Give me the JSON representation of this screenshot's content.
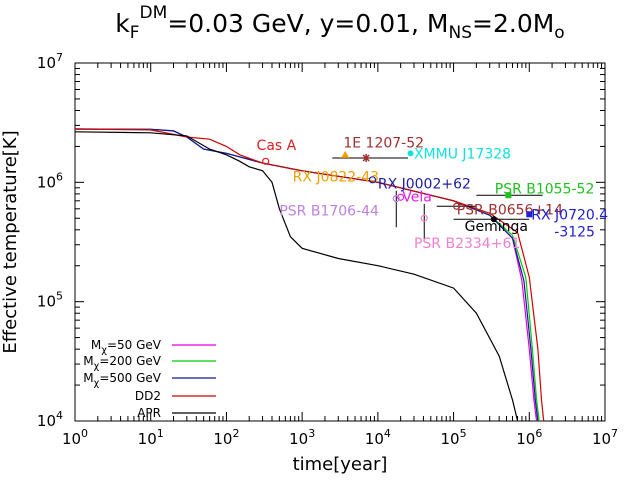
{
  "chart_data": {
    "type": "line",
    "title": {
      "k": "k",
      "sub_F": "F",
      "sup_DM": "DM",
      "rest1": "=0.03 GeV, y=0.01, M",
      "sub_NS": "NS",
      "rest2": "=2.0M",
      "sub_o": "o"
    },
    "xlabel": "time[year]",
    "ylabel": "Effective temperature[K]",
    "x_scale": "log",
    "y_scale": "log",
    "xlim": [
      1,
      10000000
    ],
    "ylim": [
      10000,
      10000000
    ],
    "x_ticks": [
      {
        "base": "10",
        "exp": "0"
      },
      {
        "base": "10",
        "exp": "1"
      },
      {
        "base": "10",
        "exp": "2"
      },
      {
        "base": "10",
        "exp": "3"
      },
      {
        "base": "10",
        "exp": "4"
      },
      {
        "base": "10",
        "exp": "5"
      },
      {
        "base": "10",
        "exp": "6"
      },
      {
        "base": "10",
        "exp": "7"
      }
    ],
    "y_ticks": [
      {
        "base": "10",
        "exp": "4"
      },
      {
        "base": "10",
        "exp": "5"
      },
      {
        "base": "10",
        "exp": "6"
      },
      {
        "base": "10",
        "exp": "7"
      }
    ],
    "legend_position": "bottom-left",
    "series": [
      {
        "name": "M_chi=50 GeV",
        "legend_pre": "M",
        "legend_sub": "χ",
        "legend_post": "=50 GeV",
        "color": "#e000e0",
        "points": [
          [
            1,
            2800000.0
          ],
          [
            10,
            2780000.0
          ],
          [
            20,
            2700000.0
          ],
          [
            30,
            2400000.0
          ],
          [
            50,
            1900000.0
          ],
          [
            100,
            1750000.0
          ],
          [
            300,
            1450000.0
          ],
          [
            1000,
            1250000.0
          ],
          [
            10000,
            1000000.0
          ],
          [
            100000,
            700000.0
          ],
          [
            300000,
            530000.0
          ],
          [
            600000,
            340000.0
          ],
          [
            800000,
            150000.0
          ],
          [
            1000000,
            40000.0
          ],
          [
            1150000,
            15000.0
          ],
          [
            1250000,
            10000.0
          ]
        ]
      },
      {
        "name": "M_chi=200 GeV",
        "legend_pre": "M",
        "legend_sub": "χ",
        "legend_post": "=200 GeV",
        "color": "#00cc00",
        "points": [
          [
            1,
            2800000.0
          ],
          [
            10,
            2780000.0
          ],
          [
            20,
            2700000.0
          ],
          [
            30,
            2400000.0
          ],
          [
            50,
            1900000.0
          ],
          [
            100,
            1750000.0
          ],
          [
            300,
            1450000.0
          ],
          [
            1000,
            1250000.0
          ],
          [
            10000,
            1000000.0
          ],
          [
            100000,
            700000.0
          ],
          [
            300000,
            530000.0
          ],
          [
            600000,
            360000.0
          ],
          [
            900000,
            160000.0
          ],
          [
            1100000,
            40000.0
          ],
          [
            1250000,
            15000.0
          ],
          [
            1350000,
            10000.0
          ]
        ]
      },
      {
        "name": "M_chi=500 GeV",
        "legend_pre": "M",
        "legend_sub": "χ",
        "legend_post": "=500 GeV",
        "color": "#1515a0",
        "points": [
          [
            1,
            2800000.0
          ],
          [
            10,
            2780000.0
          ],
          [
            20,
            2700000.0
          ],
          [
            30,
            2400000.0
          ],
          [
            50,
            1900000.0
          ],
          [
            100,
            1750000.0
          ],
          [
            300,
            1450000.0
          ],
          [
            1000,
            1250000.0
          ],
          [
            10000,
            1000000.0
          ],
          [
            100000,
            700000.0
          ],
          [
            300000,
            530000.0
          ],
          [
            600000,
            340000.0
          ],
          [
            850000,
            150000.0
          ],
          [
            1050000,
            40000.0
          ],
          [
            1200000,
            15000.0
          ],
          [
            1300000,
            10000.0
          ]
        ]
      },
      {
        "name": "DD2",
        "legend_pre": "DD2",
        "legend_sub": "",
        "legend_post": "",
        "color": "#d00000",
        "points": [
          [
            1,
            2800000.0
          ],
          [
            10,
            2750000.0
          ],
          [
            30,
            2400000.0
          ],
          [
            60,
            2300000.0
          ],
          [
            100,
            2000000.0
          ],
          [
            150,
            1700000.0
          ],
          [
            300,
            1450000.0
          ],
          [
            1000,
            1250000.0
          ],
          [
            10000,
            1000000.0
          ],
          [
            100000,
            700000.0
          ],
          [
            300000,
            550000.0
          ],
          [
            700000,
            380000.0
          ],
          [
            1000000,
            160000.0
          ],
          [
            1300000,
            40000.0
          ],
          [
            1450000,
            15000.0
          ],
          [
            1550000,
            10000.0
          ]
        ]
      },
      {
        "name": "APR",
        "legend_pre": "APR",
        "legend_sub": "",
        "legend_post": "",
        "color": "#000000",
        "points": [
          [
            1,
            2650000.0
          ],
          [
            10,
            2600000.0
          ],
          [
            30,
            2450000.0
          ],
          [
            60,
            1900000.0
          ],
          [
            100,
            1700000.0
          ],
          [
            150,
            1500000.0
          ],
          [
            200,
            1350000.0
          ],
          [
            300,
            1250000.0
          ],
          [
            400,
            1000000.0
          ],
          [
            500,
            600000.0
          ],
          [
            700,
            350000.0
          ],
          [
            1000,
            280000.0
          ],
          [
            3000,
            230000.0
          ],
          [
            10000,
            200000.0
          ],
          [
            30000,
            170000.0
          ],
          [
            100000,
            130000.0
          ],
          [
            200000,
            80000.0
          ],
          [
            400000,
            35000.0
          ],
          [
            600000,
            15000.0
          ],
          [
            700000,
            10000.0
          ]
        ]
      }
    ],
    "observations": [
      {
        "name": "Cas A",
        "color": "#e02020",
        "marker": "circle-open",
        "t": 330,
        "T": 1500000.0,
        "t_err": [],
        "T_err": [],
        "label_t": 250,
        "label_T": 2050000.0
      },
      {
        "name": "1E 1207-52",
        "color": "#a03030",
        "marker": "star",
        "t": 7000,
        "T": 1600000.0,
        "t_err": [
          2500,
          25000
        ],
        "T_err": [],
        "label_t": 3500,
        "label_T": 2150000.0
      },
      {
        "name": "RX J0822-43",
        "color": "#f0a000",
        "marker": "triangle",
        "t": 3700,
        "T": 1700000.0,
        "t_err": [],
        "T_err": [],
        "label_t": 750,
        "label_T": 1120000.0
      },
      {
        "name": "XMMU J17328",
        "color": "#10e0e0",
        "marker": "circle",
        "t": 27000,
        "T": 1750000.0,
        "t_err": [],
        "T_err": [],
        "label_t": 30000,
        "label_T": 1750000.0
      },
      {
        "name": "RX J0002+62",
        "color": "#2020a0",
        "marker": "circle-open",
        "t": 8500,
        "T": 1050000.0,
        "t_err": [],
        "T_err": [],
        "label_t": 10000,
        "label_T": 980000.0
      },
      {
        "name": "Vela",
        "color": "#e020e0",
        "marker": "circle-open",
        "t": 20000,
        "T": 750000.0,
        "t_err": [],
        "T_err": [],
        "label_t": 21000,
        "label_T": 760000.0
      },
      {
        "name": "PSR B1706-44",
        "color": "#c080e0",
        "marker": "circle-open",
        "t": 17500,
        "T": 730000.0,
        "t_err": [],
        "T_err": [
          420000.0,
          850000.0
        ],
        "label_t": 500,
        "label_T": 580000.0
      },
      {
        "name": "PSR B1055-52",
        "color": "#20c020",
        "marker": "square",
        "t": 530000,
        "T": 780000.0,
        "t_err": [
          200000,
          1500000
        ],
        "T_err": [],
        "label_t": 350000,
        "label_T": 890000.0
      },
      {
        "name": "PSR B0656+14",
        "color": "#a03030",
        "marker": "circle-open",
        "t": 110000,
        "T": 630000.0,
        "t_err": [
          60000,
          200000
        ],
        "T_err": [],
        "label_t": 110000,
        "label_T": 590000.0
      },
      {
        "name": "RX J0720.4-3125",
        "color": "#2020d0",
        "marker": "square",
        "t": 1000000,
        "T": 540000.0,
        "t_err": [],
        "T_err": [],
        "label_t": 1000000,
        "label_T": 490000.0
      },
      {
        "name": "Geminga",
        "color": "#000000",
        "marker": "circle",
        "t": 340000,
        "T": 490000.0,
        "t_err": [
          100000,
          1000000
        ],
        "T_err": [],
        "label_t": 140000,
        "label_T": 430000.0
      },
      {
        "name": "PSR B2334+61",
        "color": "#f080d0",
        "marker": "circle-open",
        "t": 41000,
        "T": 500000.0,
        "t_err": [],
        "T_err": [
          330000.0,
          660000.0
        ],
        "label_t": 30000,
        "label_T": 310000.0
      }
    ]
  },
  "labels": {
    "rx_j0720_line1": "RX J0720.4",
    "rx_j0720_line2": "-3125"
  }
}
